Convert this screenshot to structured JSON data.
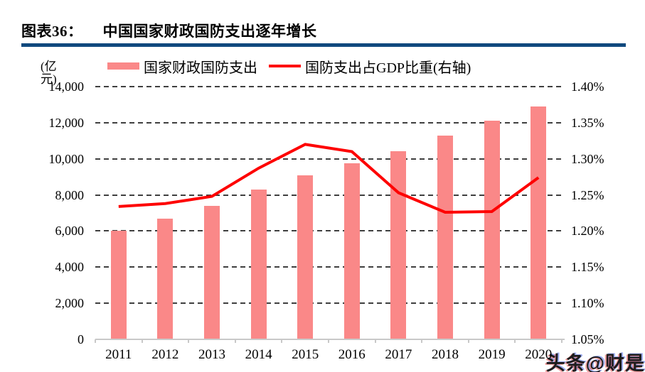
{
  "header": {
    "figure_label": "图表36：",
    "title": "中国国家财政国防支出逐年增长"
  },
  "legend": {
    "bar_label": "国家财政国防支出",
    "line_label": "国防支出占GDP比重(右轴)"
  },
  "watermark": "头条@财是",
  "colors": {
    "bar": "#FA8888",
    "line": "#FE0000",
    "title_rule": "#10497E",
    "grid_dash": "#3F3F3F",
    "axis_line": "#C9C9C9",
    "text": "#000000"
  },
  "chart_data": {
    "type": "bar",
    "combo": "bar+line, dual y-axis",
    "title": "中国国家财政国防支出逐年增长",
    "legend_position": "top",
    "grid": "horizontal dashed",
    "categories": [
      "2011",
      "2012",
      "2013",
      "2014",
      "2015",
      "2016",
      "2017",
      "2018",
      "2019",
      "2020"
    ],
    "series": [
      {
        "name": "国家财政国防支出",
        "type": "bar",
        "axis": "left",
        "unit": "亿元",
        "values": [
          6028,
          6692,
          7411,
          8290,
          9088,
          9766,
          10432,
          11280,
          12122,
          12918
        ]
      },
      {
        "name": "国防支出占GDP比重(右轴)",
        "type": "line",
        "axis": "right",
        "unit": "%",
        "values": [
          1.234,
          1.238,
          1.248,
          1.287,
          1.32,
          1.31,
          1.253,
          1.226,
          1.227,
          1.274
        ]
      }
    ],
    "left_axis": {
      "title": "(亿元)",
      "min": 0,
      "max": 14000,
      "step": 2000,
      "tick_labels": [
        "14,000",
        "12,000",
        "10,000",
        "8,000",
        "6,000",
        "4,000",
        "2,000",
        "0"
      ]
    },
    "right_axis": {
      "min": 1.05,
      "max": 1.4,
      "step": 0.05,
      "tick_labels": [
        "1.40%",
        "1.35%",
        "1.30%",
        "1.25%",
        "1.20%",
        "1.15%",
        "1.10%",
        "1.05%"
      ]
    }
  }
}
